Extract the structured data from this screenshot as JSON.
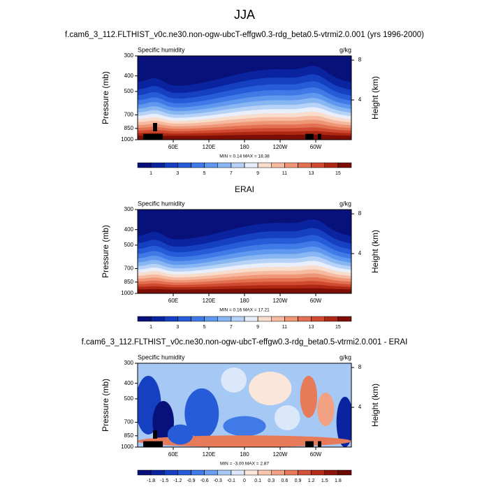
{
  "title": "JJA",
  "panels": [
    {
      "type": "contour",
      "title": "f.cam6_3_112.FLTHIST_v0c.ne30.non-ogw-ubcT-effgw0.3-rdg_beta0.5-vtrmi2.0.001 (yrs 1996-2000)",
      "left_label": "Specific humidity",
      "right_label": "g/kg",
      "ylabel": "Pressure (mb)",
      "y2label": "Height (km)",
      "xlim": [
        0,
        360
      ],
      "xticks": [
        {
          "value": 60,
          "label": "60E"
        },
        {
          "value": 120,
          "label": "120E"
        },
        180,
        {
          "value": 240,
          "label": "120W"
        },
        {
          "value": 300,
          "label": "60W"
        }
      ],
      "ylim": [
        1000,
        300
      ],
      "ylog": true,
      "yticks": [
        300,
        400,
        500,
        700,
        850,
        1000
      ],
      "y2ticks": [
        4,
        8
      ],
      "stats": "MIN =  0.14  MAX =  18.38",
      "colorbar": {
        "levels": [
          1,
          2,
          3,
          4,
          5,
          6,
          7,
          8,
          9,
          10,
          11,
          12,
          13,
          14,
          15
        ],
        "ticks": [
          1,
          3,
          5,
          7,
          9,
          11,
          13,
          15
        ],
        "colors": [
          "#08107a",
          "#0a24a0",
          "#1540c2",
          "#275cd8",
          "#3f7ae6",
          "#5f98ee",
          "#88b6f3",
          "#b6d2f7",
          "#e8eefa",
          "#f8dccc",
          "#f5baa0",
          "#ef9676",
          "#e37050",
          "#cf4a30",
          "#ae2814",
          "#7c0e06"
        ]
      }
    },
    {
      "type": "contour",
      "title": "ERAI",
      "left_label": "Specific humidity",
      "right_label": "g/kg",
      "ylabel": "Pressure (mb)",
      "y2label": "Height (km)",
      "xlim": [
        0,
        360
      ],
      "xticks": [
        {
          "value": 60,
          "label": "60E"
        },
        {
          "value": 120,
          "label": "120E"
        },
        180,
        {
          "value": 240,
          "label": "120W"
        },
        {
          "value": 300,
          "label": "60W"
        }
      ],
      "ylim": [
        1000,
        300
      ],
      "ylog": true,
      "yticks": [
        300,
        400,
        500,
        700,
        850,
        1000
      ],
      "y2ticks": [
        4,
        8
      ],
      "stats": "MIN =  0.16  MAX =  17.21",
      "colorbar": {
        "levels": [
          1,
          2,
          3,
          4,
          5,
          6,
          7,
          8,
          9,
          10,
          11,
          12,
          13,
          14,
          15
        ],
        "ticks": [
          1,
          3,
          5,
          7,
          9,
          11,
          13,
          15
        ],
        "colors": [
          "#08107a",
          "#0a24a0",
          "#1540c2",
          "#275cd8",
          "#3f7ae6",
          "#5f98ee",
          "#88b6f3",
          "#b6d2f7",
          "#e8eefa",
          "#f8dccc",
          "#f5baa0",
          "#ef9676",
          "#e37050",
          "#cf4a30",
          "#ae2814",
          "#7c0e06"
        ]
      }
    },
    {
      "type": "difference",
      "title": "f.cam6_3_112.FLTHIST_v0c.ne30.non-ogw-ubcT-effgw0.3-rdg_beta0.5-vtrmi2.0.001 - ERAI",
      "left_label": "Specific humidity",
      "right_label": "g/kg",
      "ylabel": "Pressure (mb)",
      "y2label": "Height (km)",
      "xlim": [
        0,
        360
      ],
      "xticks": [
        {
          "value": 60,
          "label": "60E"
        },
        {
          "value": 120,
          "label": "120E"
        },
        180,
        {
          "value": 240,
          "label": "120W"
        },
        {
          "value": 300,
          "label": "60W"
        }
      ],
      "ylim": [
        1000,
        300
      ],
      "ylog": true,
      "yticks": [
        300,
        400,
        500,
        700,
        850,
        1000
      ],
      "y2ticks": [
        4,
        8
      ],
      "stats": "MIN = -3.00  MAX =  2.87",
      "colorbar": {
        "levels": [
          -1.8,
          -1.5,
          -1.2,
          -0.9,
          -0.6,
          -0.3,
          -0.1,
          0,
          0.1,
          0.3,
          0.6,
          0.9,
          1.2,
          1.5,
          1.8
        ],
        "ticks": [
          -1.8,
          -1.5,
          -1.2,
          -0.9,
          -0.6,
          -0.3,
          -0.1,
          0,
          0.1,
          0.3,
          0.6,
          0.9,
          1.2,
          1.5,
          1.8
        ],
        "colors": [
          "#08107a",
          "#0a24a0",
          "#1540c2",
          "#275cd8",
          "#3f7ae6",
          "#6a9eee",
          "#a6c8f5",
          "#dae8fa",
          "#fbe6da",
          "#f7c6ae",
          "#f2a282",
          "#e77a58",
          "#d5503a",
          "#b42c1a",
          "#8c1408",
          "#6a0804"
        ]
      }
    }
  ]
}
